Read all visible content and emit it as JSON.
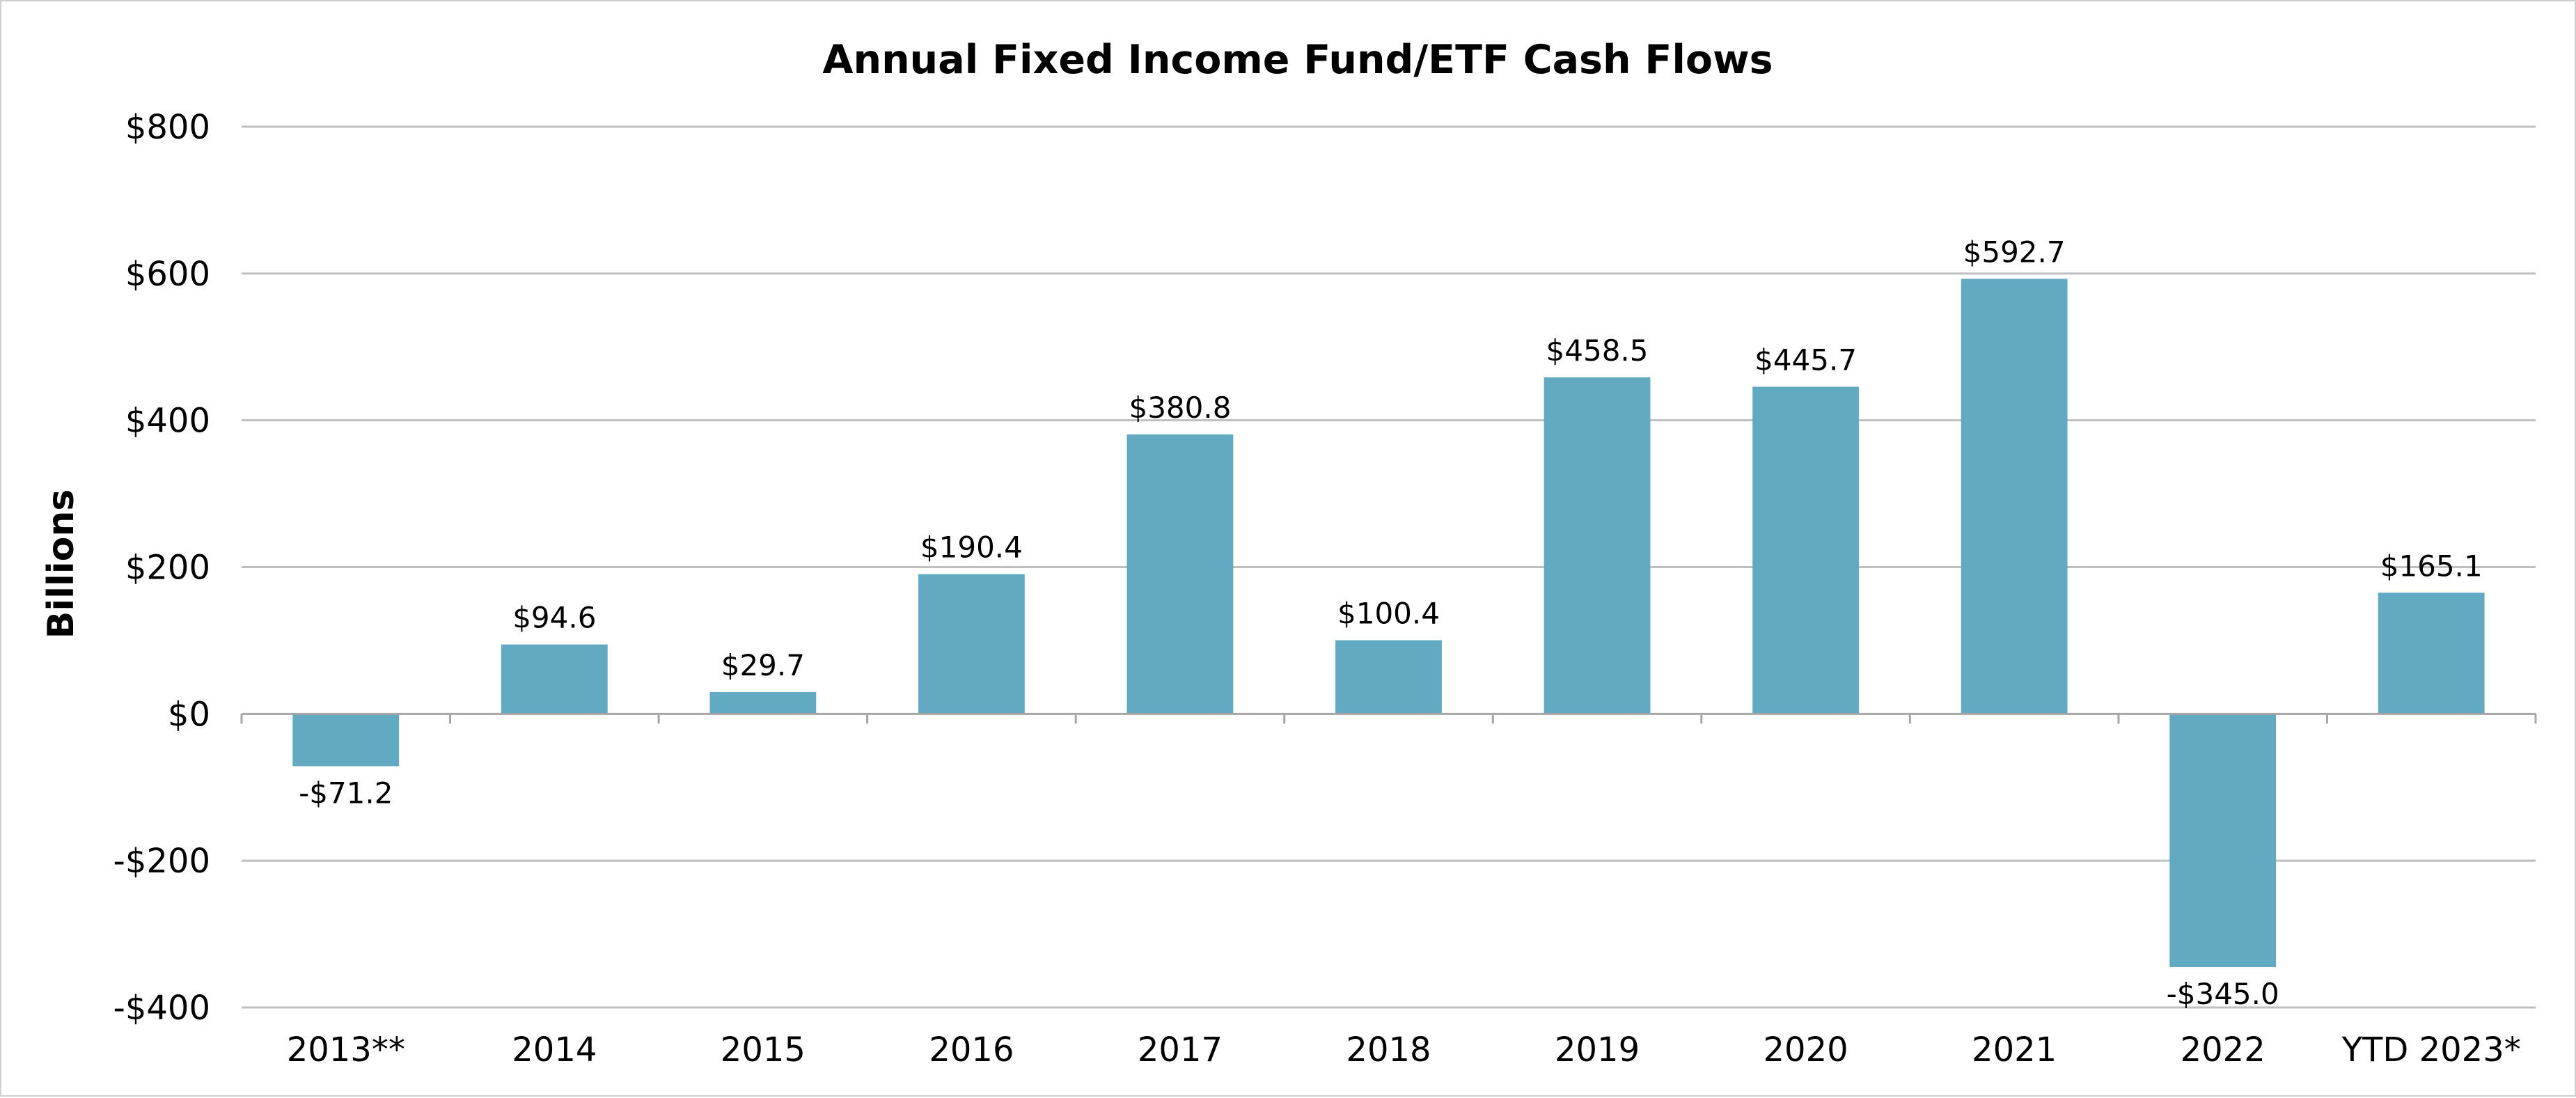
{
  "chart_data": {
    "type": "bar",
    "title": "Annual Fixed Income Fund/ETF Cash Flows",
    "xlabel": "",
    "ylabel": "Billions",
    "categories": [
      "2013**",
      "2014",
      "2015",
      "2016",
      "2017",
      "2018",
      "2019",
      "2020",
      "2021",
      "2022",
      "YTD 2023*"
    ],
    "values": [
      -71.2,
      94.6,
      29.7,
      190.4,
      380.8,
      100.4,
      458.5,
      445.7,
      592.7,
      -345.0,
      165.1
    ],
    "data_labels": [
      "-$71.2",
      "$94.6",
      "$29.7",
      "$190.4",
      "$380.8",
      "$100.4",
      "$458.5",
      "$445.7",
      "$592.7",
      "-$345.0",
      "$165.1"
    ],
    "ylim": [
      -400,
      800
    ],
    "yticks": [
      800,
      600,
      400,
      200,
      0,
      -200,
      -400
    ],
    "ytick_labels": [
      "$800",
      "$600",
      "$400",
      "$200",
      "$0",
      "-$200",
      "-$400"
    ],
    "grid": true,
    "legend": "none",
    "bar_color": "#62a9c2"
  }
}
